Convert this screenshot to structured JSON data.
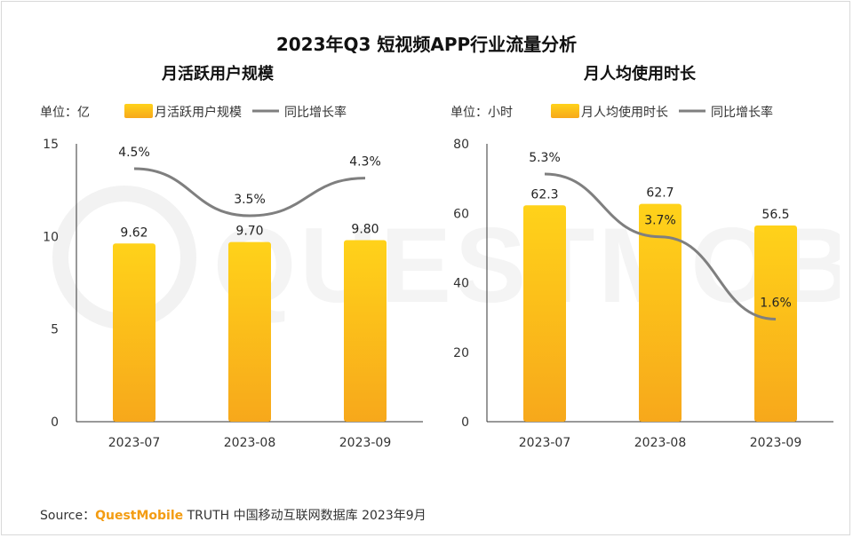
{
  "title": "2023年Q3 短视频APP行业流量分析",
  "source": {
    "prefix": "Source：",
    "brand": "QuestMobile",
    "suffix": " TRUTH 中国移动互联网数据库 2023年9月"
  },
  "watermark_text": "QUESTMOBILE",
  "colors": {
    "bar_top": "#ffd21a",
    "bar_bottom": "#f7a81b",
    "line": "#7f7f7f",
    "axis": "#333333"
  },
  "chart_data": [
    {
      "type": "bar",
      "title": "月活跃用户规模",
      "unit_label": "单位：亿",
      "legend": [
        "月活跃用户规模",
        "同比增长率"
      ],
      "categories": [
        "2023-07",
        "2023-08",
        "2023-09"
      ],
      "ylim": [
        0,
        15
      ],
      "yticks": [
        0,
        5,
        10,
        15
      ],
      "series": [
        {
          "name": "月活跃用户规模",
          "type": "bar",
          "values": [
            9.62,
            9.7,
            9.8
          ],
          "labels": [
            "9.62",
            "9.70",
            "9.80"
          ]
        },
        {
          "name": "同比增长率",
          "type": "line",
          "values": [
            4.5,
            3.5,
            4.3
          ],
          "labels": [
            "4.5%",
            "3.5%",
            "4.3%"
          ]
        }
      ]
    },
    {
      "type": "bar",
      "title": "月人均使用时长",
      "unit_label": "单位：小时",
      "legend": [
        "月人均使用时长",
        "同比增长率"
      ],
      "categories": [
        "2023-07",
        "2023-08",
        "2023-09"
      ],
      "ylim": [
        0,
        80
      ],
      "yticks": [
        0,
        20,
        40,
        60,
        80
      ],
      "series": [
        {
          "name": "月人均使用时长",
          "type": "bar",
          "values": [
            62.3,
            62.7,
            56.5
          ],
          "labels": [
            "62.3",
            "62.7",
            "56.5"
          ]
        },
        {
          "name": "同比增长率",
          "type": "line",
          "values": [
            5.3,
            3.7,
            1.6
          ],
          "labels": [
            "5.3%",
            "3.7%",
            "1.6%"
          ]
        }
      ]
    }
  ]
}
